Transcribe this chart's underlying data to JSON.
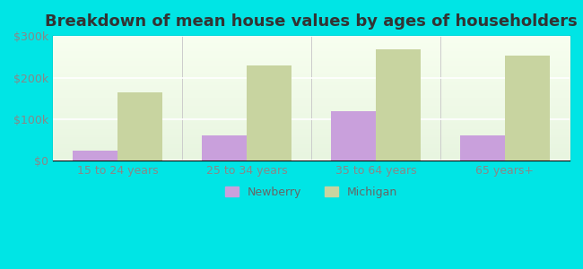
{
  "title": "Breakdown of mean house values by ages of householders",
  "categories": [
    "15 to 24 years",
    "25 to 34 years",
    "35 to 64 years",
    "65 years+"
  ],
  "newberry_values": [
    25000,
    62000,
    120000,
    62000
  ],
  "michigan_values": [
    165000,
    230000,
    268000,
    252000
  ],
  "newberry_color": "#c9a0dc",
  "michigan_color": "#c8d4a0",
  "background_color": "#00e5e5",
  "plot_bg_gradient_top": "#e8f5e0",
  "plot_bg_gradient_bottom": "#ffffff",
  "ylim": [
    0,
    300000
  ],
  "yticks": [
    0,
    100000,
    200000,
    300000
  ],
  "ytick_labels": [
    "$0",
    "$100k",
    "$200k",
    "$300k"
  ],
  "legend_labels": [
    "Newberry",
    "Michigan"
  ],
  "title_fontsize": 13,
  "tick_fontsize": 9,
  "legend_fontsize": 9
}
